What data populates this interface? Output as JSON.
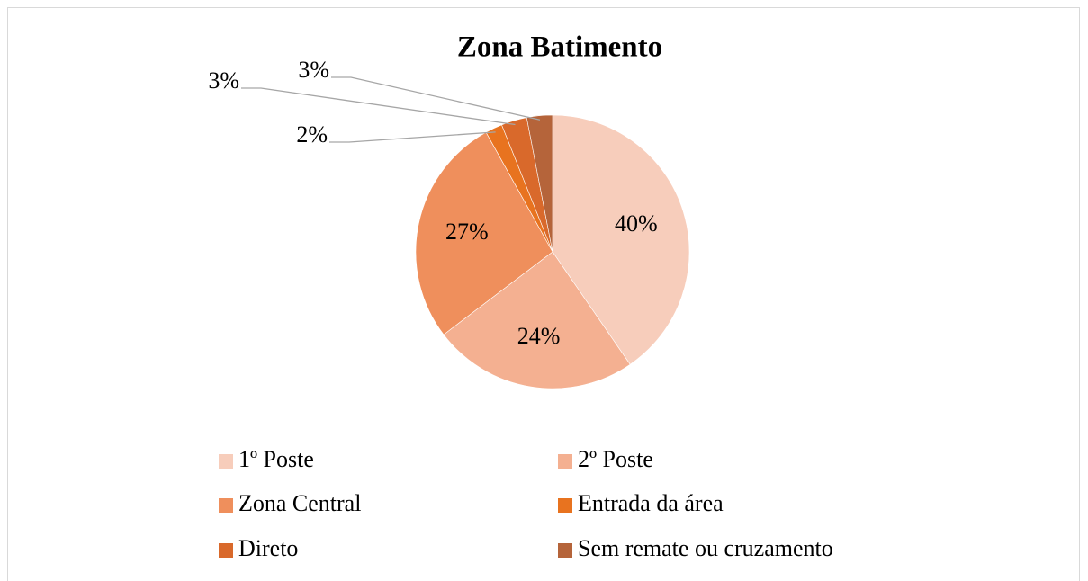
{
  "chart_data": {
    "type": "pie",
    "title": "Zona Batimento",
    "categories": [
      "1º Poste",
      "2º Poste",
      "Zona Central",
      "Entrada da área",
      "Direto",
      "Sem remate ou cruzamento"
    ],
    "values": [
      40,
      24,
      27,
      2,
      3,
      3
    ],
    "value_labels": [
      "40%",
      "24%",
      "27%",
      "2%",
      "3%",
      "3%"
    ],
    "colors": [
      "#f7cdbb",
      "#f4b091",
      "#ef8f5c",
      "#e8731f",
      "#d9692b",
      "#b5643a"
    ],
    "legend": "bottom"
  }
}
